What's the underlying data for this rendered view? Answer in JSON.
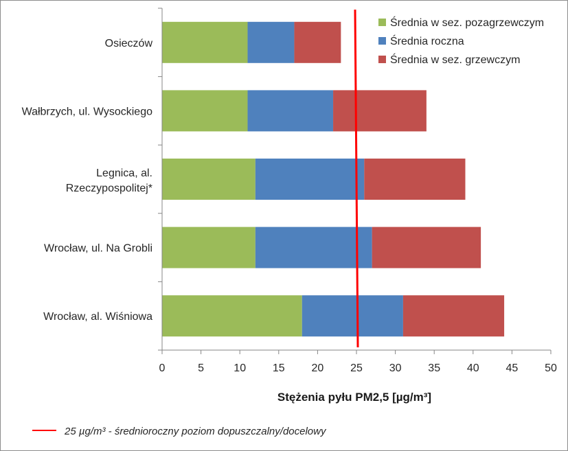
{
  "chart_data": {
    "type": "bar",
    "orientation": "horizontal",
    "stacked": true,
    "categories": [
      "Osieczów",
      "Wałbrzych, ul. Wysockiego",
      "Legnica, al. Rzeczypospolitej*",
      "Wrocław, ul. Na Grobli",
      "Wrocław, al. Wiśniowa"
    ],
    "series": [
      {
        "name": "Średnia w sez. pozagrzewczym",
        "color": "#9bbb59",
        "values": [
          11,
          11,
          12,
          12,
          18
        ]
      },
      {
        "name": "Średnia roczna",
        "color": "#4f81bd",
        "values": [
          6,
          11,
          14,
          15,
          13
        ]
      },
      {
        "name": "Średnia w sez. grzewczym",
        "color": "#c0504d",
        "values": [
          6,
          12,
          13,
          14,
          13
        ]
      }
    ],
    "xlabel": "Stężenia pyłu PM2,5 [µg/m³]",
    "xlim": [
      0,
      50
    ],
    "xticks": [
      0,
      5,
      10,
      15,
      20,
      25,
      30,
      35,
      40,
      45,
      50
    ],
    "reference_line": {
      "value": 25,
      "color": "#ff0000",
      "label": "25 µg/m³ - średnioroczny poziom dopuszczalny/docelowy"
    },
    "legend_position": "top-right",
    "grid": false
  }
}
